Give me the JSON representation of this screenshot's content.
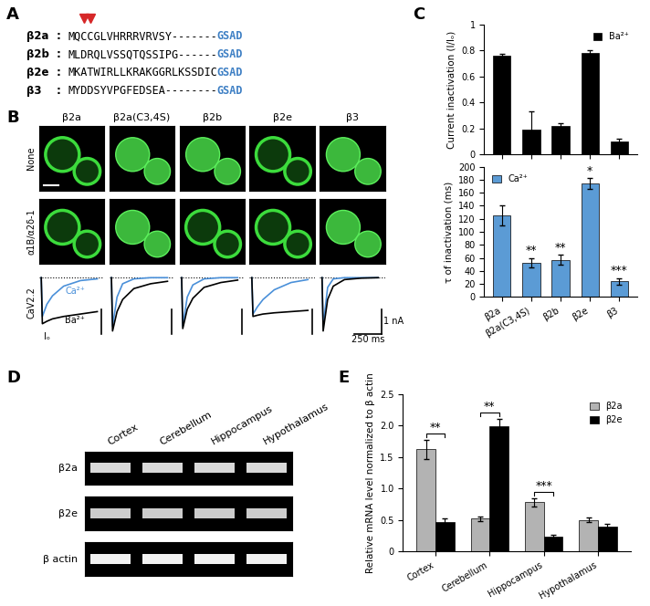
{
  "panels": {
    "A": {
      "label": "A",
      "separator": ":",
      "sequences": [
        {
          "name": "β2a",
          "sequence": "MQCCGLVHRRRVRVSY-------",
          "conserved": "GSAD",
          "marked_positions": [
            3,
            4
          ]
        },
        {
          "name": "β2b",
          "sequence": "MLDRQLVSSQTQSSIPG------",
          "conserved": "GSAD"
        },
        {
          "name": "β2e",
          "sequence": "MKATWIRLLKRAKGGRLKSSDIC",
          "conserved": "GSAD"
        },
        {
          "name": "β3",
          "sequence": "MYDDSYVPGFEDSEA--------",
          "conserved": "GSAD"
        }
      ]
    },
    "B": {
      "label": "B",
      "columns": [
        "β2a",
        "β2a(C3,4S)",
        "β2b",
        "β2e",
        "β3"
      ],
      "rows": [
        "None",
        "α1B/α2δ-1"
      ],
      "trace_label": "CaV2.2",
      "i0_label": "Iₒ",
      "time_ms": [
        0,
        10,
        50,
        100,
        200,
        350,
        500
      ],
      "traces": [
        {
          "name": "Ca²⁺",
          "color": "#4a90d9",
          "values": [
            [
              0,
              -1.6,
              -1.1,
              -0.75,
              -0.35,
              -0.12,
              -0.05
            ],
            [
              0,
              -2.0,
              -0.8,
              -0.25,
              -0.05,
              0,
              0
            ],
            [
              0,
              -2.0,
              -0.8,
              -0.3,
              -0.05,
              0,
              0
            ],
            [
              0,
              -1.5,
              -1.2,
              -0.9,
              -0.5,
              -0.2,
              -0.08
            ],
            [
              0,
              -2.0,
              -0.4,
              -0.05,
              0,
              0,
              0
            ]
          ]
        },
        {
          "name": "Ba²⁺",
          "color": "#000000",
          "values": [
            [
              0,
              -1.9,
              -1.8,
              -1.7,
              -1.6,
              -1.5,
              -1.4
            ],
            [
              0,
              -2.2,
              -1.4,
              -0.9,
              -0.45,
              -0.25,
              -0.15
            ],
            [
              0,
              -2.1,
              -1.3,
              -0.85,
              -0.4,
              -0.2,
              -0.1
            ],
            [
              0,
              -1.6,
              -1.55,
              -1.5,
              -1.45,
              -1.4,
              -1.35
            ],
            [
              0,
              -2.2,
              -0.9,
              -0.35,
              -0.08,
              -0.02,
              0
            ]
          ]
        }
      ],
      "scale_bars": {
        "current": {
          "value": 1,
          "label": "1 nA"
        },
        "time": {
          "value": 250,
          "label": "250 ms"
        }
      }
    },
    "D": {
      "label": "D",
      "columns": [
        "Cortex",
        "Cerebellum",
        "Hippocampus",
        "Hypothalamus"
      ],
      "rows": [
        "β2a",
        "β2e",
        "β actin"
      ]
    }
  },
  "chart_data": [
    {
      "type": "bar",
      "panel_label": "C",
      "categories": [
        "β2a",
        "β2a(C3,4S)",
        "β2b",
        "β2e",
        "β3"
      ],
      "series": [
        {
          "name": "Ba²⁺",
          "color": "#000000",
          "values": [
            0.76,
            0.19,
            0.22,
            0.78,
            0.1
          ],
          "errors": [
            0.01,
            0.14,
            0.02,
            0.02,
            0.02
          ]
        }
      ],
      "y_label": "Current inactivation (I/Iₒ)",
      "ylim": [
        0,
        1
      ],
      "yticks": [
        0,
        0.2,
        0.4,
        0.6,
        0.8,
        1
      ],
      "legend": "upper right",
      "tick_labels": "y"
    },
    {
      "type": "bar",
      "categories": [
        "β2a",
        "β2a(C3,4S)",
        "β2b",
        "β2e",
        "β3"
      ],
      "series": [
        {
          "name": "Ca²⁺",
          "color": "#5b9bd5",
          "values": [
            125,
            53,
            57,
            174,
            24
          ],
          "errors": [
            15,
            7,
            8,
            8,
            5
          ],
          "significance": [
            null,
            "**",
            "**",
            "*",
            "***"
          ]
        }
      ],
      "y_label": "τ of inactivation (ms)",
      "ylim": [
        0,
        200
      ],
      "yticks": [
        0,
        20,
        40,
        60,
        80,
        100,
        120,
        140,
        160,
        180,
        200
      ],
      "legend": "upper left"
    },
    {
      "type": "bar",
      "panel_label": "E",
      "categories": [
        "Cortex",
        "Cerebellum",
        "Hippocampus",
        "Hypothalamus"
      ],
      "series": [
        {
          "name": "β2a",
          "color": "#b3b3b3",
          "values": [
            1.62,
            0.52,
            0.78,
            0.5
          ],
          "errors": [
            0.15,
            0.04,
            0.06,
            0.04
          ]
        },
        {
          "name": "β2e",
          "color": "#000000",
          "values": [
            0.47,
            1.99,
            0.23,
            0.4
          ],
          "errors": [
            0.05,
            0.11,
            0.03,
            0.04
          ]
        }
      ],
      "comparisons": [
        {
          "category": "Cortex",
          "label": "**"
        },
        {
          "category": "Cerebellum",
          "label": "**"
        },
        {
          "category": "Hippocampus",
          "label": "***"
        }
      ],
      "y_label": "Relative mRNA level normalized to β actin",
      "ylim": [
        0,
        2.5
      ],
      "yticks": [
        0,
        0.5,
        1.0,
        1.5,
        2.0,
        2.5
      ],
      "legend": "upper right"
    }
  ]
}
